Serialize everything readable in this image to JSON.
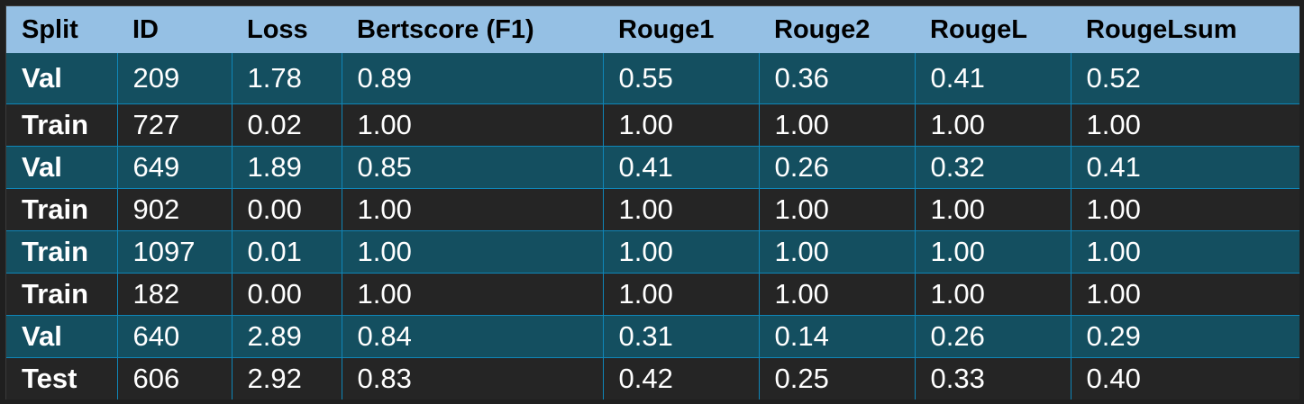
{
  "colors": {
    "header_bg": "#95c0e4",
    "header_text": "#000000",
    "band_teal": "#144f60",
    "band_dark": "#252525",
    "grid_line": "#0f86b8",
    "cell_text": "#ffffff"
  },
  "table": {
    "headers": [
      "Split",
      "ID",
      "Loss",
      "Bertscore (F1)",
      "Rouge1",
      "Rouge2",
      "RougeL",
      "RougeLsum"
    ],
    "rows": [
      [
        "Val",
        "209",
        "1.78",
        "0.89",
        "0.55",
        "0.36",
        "0.41",
        "0.52"
      ],
      [
        "Train",
        "727",
        "0.02",
        "1.00",
        "1.00",
        "1.00",
        "1.00",
        "1.00"
      ],
      [
        "Val",
        "649",
        "1.89",
        "0.85",
        "0.41",
        "0.26",
        "0.32",
        "0.41"
      ],
      [
        "Train",
        "902",
        "0.00",
        "1.00",
        "1.00",
        "1.00",
        "1.00",
        "1.00"
      ],
      [
        "Train",
        "1097",
        "0.01",
        "1.00",
        "1.00",
        "1.00",
        "1.00",
        "1.00"
      ],
      [
        "Train",
        "182",
        "0.00",
        "1.00",
        "1.00",
        "1.00",
        "1.00",
        "1.00"
      ],
      [
        "Val",
        "640",
        "2.89",
        "0.84",
        "0.31",
        "0.14",
        "0.26",
        "0.29"
      ],
      [
        "Test",
        "606",
        "2.92",
        "0.83",
        "0.42",
        "0.25",
        "0.33",
        "0.40"
      ]
    ]
  }
}
